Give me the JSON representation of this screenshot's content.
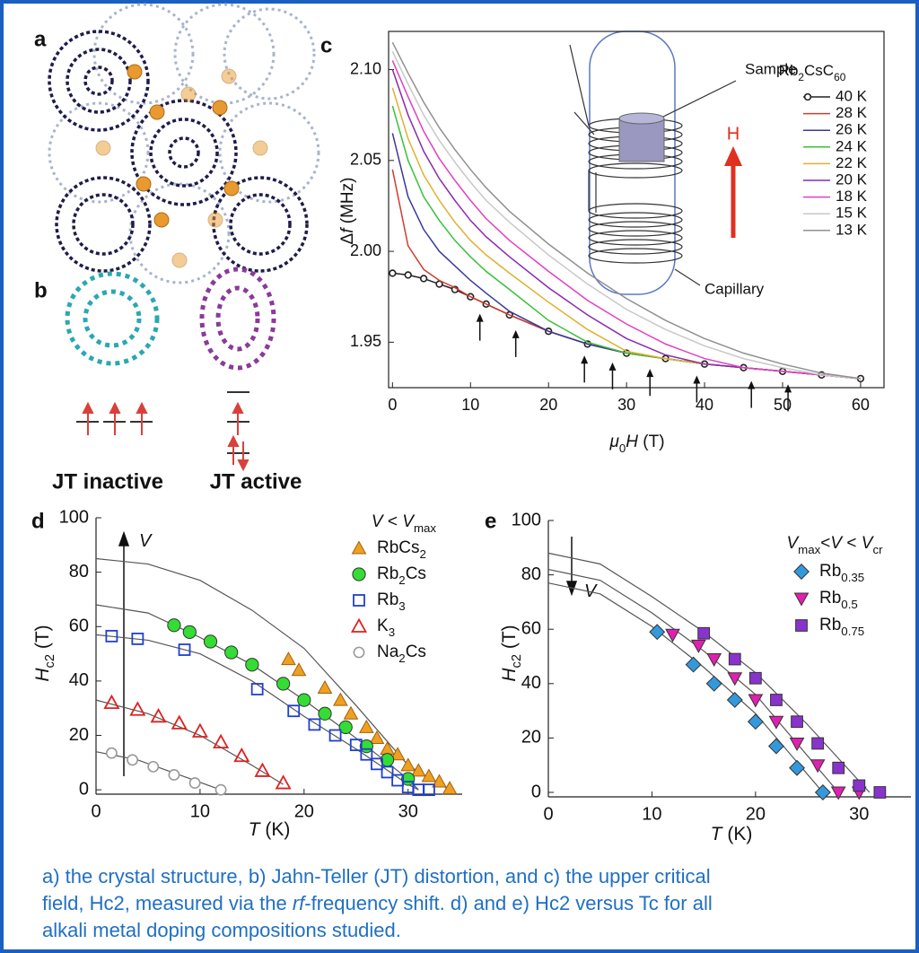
{
  "panel_labels": [
    "a",
    "b",
    "c",
    "d",
    "e"
  ],
  "figure_labels": [
    "JT inactive",
    "JT active"
  ],
  "chart_data": [
    {
      "type": "line",
      "x_label": "μ0H (T)",
      "y_label": "Δf (MHz)",
      "legend_title": "Rb2CsC60",
      "annotations": [
        "Sample",
        "H",
        "Capillary"
      ],
      "xlim": [
        -0.5,
        63
      ],
      "ylim": [
        1.925,
        2.121
      ],
      "xticks": [
        0,
        10,
        20,
        30,
        40,
        50,
        60
      ],
      "yticks": [
        1.95,
        {
          "value": 2,
          "label": "2.00"
        },
        2.05,
        {
          "value": 2.1,
          "label": "2.10"
        }
      ],
      "x": [
        0,
        2,
        4,
        6,
        8,
        10,
        12,
        15,
        20,
        25,
        30,
        35,
        40,
        45,
        50,
        55,
        60
      ],
      "arrows_x": [
        11.2,
        15.8,
        24.6,
        28.2,
        33,
        39,
        46,
        50.7
      ],
      "series": [
        {
          "name": "40 K",
          "color": "#222222",
          "marker": "circle-open",
          "values": [
            1.988,
            1.987,
            1.985,
            1.982,
            1.979,
            1.975,
            1.971,
            1.965,
            1.956,
            1.949,
            1.944,
            1.941,
            1.938,
            1.936,
            1.934,
            1.932,
            1.93
          ]
        },
        {
          "name": "28 K",
          "color": "#d23b2e",
          "values": [
            2.045,
            2.003,
            1.99,
            1.984,
            1.98,
            1.975,
            1.971,
            1.965,
            1.956,
            1.949,
            1.944,
            1.941,
            1.938,
            1.936,
            1.934,
            1.932,
            1.93
          ]
        },
        {
          "name": "26 K",
          "color": "#3a3a9a",
          "values": [
            2.065,
            2.03,
            2.012,
            2.0,
            1.992,
            1.984,
            1.977,
            1.967,
            1.956,
            1.949,
            1.944,
            1.941,
            1.938,
            1.936,
            1.934,
            1.932,
            1.93
          ]
        },
        {
          "name": "24 K",
          "color": "#3ac03a",
          "values": [
            2.08,
            2.05,
            2.03,
            2.017,
            2.006,
            1.997,
            1.989,
            1.979,
            1.962,
            1.95,
            1.944,
            1.941,
            1.938,
            1.936,
            1.934,
            1.932,
            1.93
          ]
        },
        {
          "name": "22 K",
          "color": "#e0b030",
          "values": [
            2.09,
            2.062,
            2.042,
            2.028,
            2.016,
            2.006,
            1.998,
            1.988,
            1.972,
            1.957,
            1.945,
            1.941,
            1.938,
            1.936,
            1.934,
            1.932,
            1.93
          ]
        },
        {
          "name": "20 K",
          "color": "#8a2ab0",
          "values": [
            2.1,
            2.075,
            2.055,
            2.04,
            2.028,
            2.017,
            2.008,
            1.997,
            1.98,
            1.965,
            1.952,
            1.943,
            1.938,
            1.936,
            1.934,
            1.932,
            1.93
          ]
        },
        {
          "name": "18 K",
          "color": "#e040c0",
          "values": [
            2.105,
            2.085,
            2.066,
            2.051,
            2.039,
            2.028,
            2.018,
            2.006,
            1.989,
            1.973,
            1.96,
            1.949,
            1.941,
            1.936,
            1.934,
            1.932,
            1.93
          ]
        },
        {
          "name": "15 K",
          "color": "#c8c8c8",
          "values": [
            2.11,
            2.092,
            2.075,
            2.061,
            2.049,
            2.038,
            2.028,
            2.016,
            1.998,
            1.982,
            1.968,
            1.957,
            1.948,
            1.941,
            1.936,
            1.932,
            1.93
          ]
        },
        {
          "name": "13 K",
          "color": "#909090",
          "values": [
            2.115,
            2.098,
            2.082,
            2.068,
            2.056,
            2.045,
            2.035,
            2.022,
            2.004,
            1.988,
            1.974,
            1.962,
            1.952,
            1.944,
            1.938,
            1.933,
            1.93
          ]
        }
      ]
    },
    {
      "type": "scatter",
      "x_label": "T (K)",
      "y_label": "Hc2 (T)",
      "legend_title": "V < Vmax",
      "annotation": "V",
      "xlim": [
        0,
        35.2
      ],
      "ylim": [
        -1.6,
        100
      ],
      "xticks": [
        0,
        10,
        20,
        30
      ],
      "yticks": [
        0,
        20,
        40,
        60,
        80,
        100
      ],
      "series": [
        {
          "name": "RbCs2",
          "color": "#f0a020",
          "marker": "triangle",
          "x": [
            18.5,
            19.5,
            22,
            23.5,
            24.5,
            26,
            27,
            28,
            29,
            30,
            31,
            32,
            33,
            34
          ],
          "values": [
            48,
            44,
            37.5,
            33,
            28,
            23,
            19,
            15,
            13,
            9,
            7,
            5,
            3,
            0.5
          ]
        },
        {
          "name": "Rb2Cs",
          "color": "#33dd33",
          "marker": "circle",
          "x": [
            7.5,
            9,
            11,
            13,
            15,
            18,
            20,
            22,
            24,
            26,
            28,
            30
          ],
          "values": [
            60.5,
            58,
            54.5,
            50.5,
            46,
            39,
            33,
            28,
            23,
            16,
            11,
            4
          ]
        },
        {
          "name": "Rb3",
          "color": "#2040d0",
          "marker": "square-open",
          "x": [
            1.5,
            4,
            8.5,
            15.5,
            19,
            21,
            23,
            25,
            26,
            27,
            28,
            29,
            30,
            31,
            32
          ],
          "values": [
            56.5,
            55.5,
            51.5,
            37,
            29,
            24,
            20,
            16.5,
            13,
            9.5,
            6.5,
            3.5,
            1,
            0,
            0
          ]
        },
        {
          "name": "K3",
          "color": "#e02020",
          "marker": "triangle-open",
          "x": [
            1.5,
            4,
            6,
            8,
            10,
            12,
            14,
            16,
            18
          ],
          "values": [
            32,
            29.5,
            27,
            24.5,
            21.5,
            17.5,
            12.5,
            7,
            2.5
          ]
        },
        {
          "name": "Na2Cs",
          "color": "#999999",
          "marker": "circle-open",
          "x": [
            1.5,
            3.5,
            5.5,
            7.5,
            9.5,
            12
          ],
          "values": [
            13.5,
            11,
            8.5,
            5.5,
            2.5,
            0
          ]
        }
      ],
      "fits": [
        {
          "x": [
            0,
            5,
            10,
            15,
            20,
            25,
            30,
            34
          ],
          "values": [
            85,
            83,
            77,
            66,
            52,
            31,
            9,
            0
          ]
        },
        {
          "x": [
            0,
            5,
            10,
            15,
            20,
            25,
            30,
            31
          ],
          "values": [
            68,
            65,
            56,
            46,
            33,
            19,
            4,
            0
          ]
        },
        {
          "x": [
            0,
            5,
            10,
            15,
            20,
            25,
            30,
            31
          ],
          "values": [
            57,
            55,
            50,
            40,
            27,
            15,
            2,
            0
          ]
        },
        {
          "x": [
            0,
            5,
            10,
            15,
            18
          ],
          "values": [
            33,
            28,
            20,
            9,
            2
          ]
        },
        {
          "x": [
            0,
            4,
            8,
            12
          ],
          "values": [
            14,
            11,
            5.5,
            0
          ]
        }
      ]
    },
    {
      "type": "scatter",
      "x_label": "T (K)",
      "y_label": "Hc2 (T)",
      "legend_title": "Vmax<V < Vcr",
      "annotation": "V",
      "xlim": [
        0,
        35
      ],
      "ylim": [
        -1.65,
        100
      ],
      "xticks": [
        0,
        10,
        20,
        30
      ],
      "yticks": [
        0,
        20,
        40,
        60,
        80,
        100
      ],
      "series": [
        {
          "name": "Rb0.35",
          "color": "#3399dd",
          "marker": "diamond",
          "x": [
            10.5,
            14,
            16,
            18,
            20,
            22,
            24,
            26.5
          ],
          "values": [
            59,
            47,
            40,
            34,
            26,
            17,
            9,
            0
          ]
        },
        {
          "name": "Rb0.5",
          "color": "#e020b0",
          "marker": "triangle-down",
          "x": [
            12,
            14.5,
            16,
            18,
            20,
            22,
            24,
            26,
            28,
            30
          ],
          "values": [
            58,
            54,
            49,
            42,
            34,
            26,
            18,
            10,
            0,
            0
          ]
        },
        {
          "name": "Rb0.75",
          "color": "#8833cc",
          "marker": "square",
          "x": [
            15,
            18,
            20,
            22,
            24,
            26,
            28,
            30,
            32
          ],
          "values": [
            58.5,
            49,
            42,
            34,
            26,
            18,
            9,
            2.5,
            0
          ]
        }
      ],
      "fits": [
        {
          "x": [
            0,
            5,
            10,
            15,
            20,
            26.5
          ],
          "values": [
            77,
            73,
            61,
            46,
            29,
            0
          ]
        },
        {
          "x": [
            0,
            5,
            10,
            15,
            20,
            28
          ],
          "values": [
            82,
            78,
            66,
            52,
            36,
            0
          ]
        },
        {
          "x": [
            0,
            5,
            10,
            15,
            20,
            25,
            31
          ],
          "values": [
            88,
            84,
            72,
            59,
            44,
            25,
            0
          ]
        }
      ]
    }
  ],
  "caption": [
    [
      "a) the crystal structure, b) Jahn-Teller (JT) distortion, and c) the upper critical"
    ],
    [
      "field, Hc2, measured via the ",
      "rf",
      "-frequency shift. d) and e) Hc2 versus Tc for all"
    ],
    [
      "alkali metal doping compositions studied."
    ]
  ]
}
